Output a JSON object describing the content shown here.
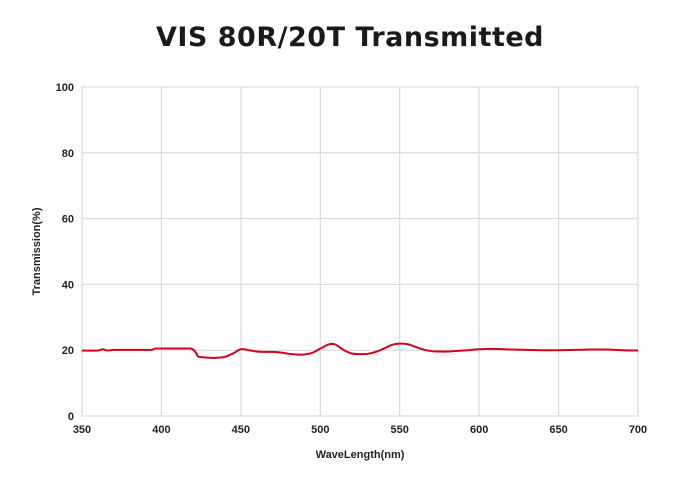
{
  "title": "VIS 80R/20T Transmitted",
  "chart_data": {
    "type": "line",
    "title": "VIS 80R/20T Transmitted",
    "xlabel": "WaveLength(nm)",
    "ylabel": "Transmission(%)",
    "xlim": [
      350,
      700
    ],
    "ylim": [
      0,
      100
    ],
    "xticks": [
      350,
      400,
      450,
      500,
      550,
      600,
      650,
      700
    ],
    "yticks": [
      0,
      20,
      40,
      60,
      80,
      100
    ],
    "grid": true,
    "line_color": "#d9001b",
    "series": [
      {
        "x": [
          350,
          360,
          363,
          366,
          370,
          380,
          390,
          394,
          396,
          400,
          405,
          410,
          415,
          418,
          420,
          422,
          423,
          425,
          430,
          435,
          440,
          445,
          450,
          455,
          460,
          465,
          470,
          475,
          480,
          485,
          490,
          495,
          500,
          505,
          508,
          510,
          515,
          520,
          525,
          530,
          535,
          540,
          545,
          550,
          555,
          560,
          565,
          570,
          575,
          580,
          590,
          600,
          610,
          620,
          630,
          640,
          650,
          660,
          670,
          680,
          690,
          700
        ],
        "y": [
          19.9,
          19.9,
          20.3,
          19.9,
          20.1,
          20.1,
          20.1,
          20.1,
          20.5,
          20.5,
          20.5,
          20.5,
          20.5,
          20.5,
          20.2,
          19.0,
          18.1,
          17.9,
          17.7,
          17.7,
          18.0,
          19.0,
          20.3,
          20.0,
          19.6,
          19.5,
          19.5,
          19.3,
          18.9,
          18.7,
          18.7,
          19.2,
          20.5,
          21.7,
          21.9,
          21.6,
          20.0,
          19.0,
          18.8,
          18.9,
          19.5,
          20.5,
          21.6,
          22.0,
          21.8,
          21.0,
          20.2,
          19.7,
          19.6,
          19.6,
          19.9,
          20.3,
          20.4,
          20.2,
          20.1,
          20.0,
          20.0,
          20.1,
          20.2,
          20.2,
          20.0,
          19.9
        ]
      }
    ]
  }
}
